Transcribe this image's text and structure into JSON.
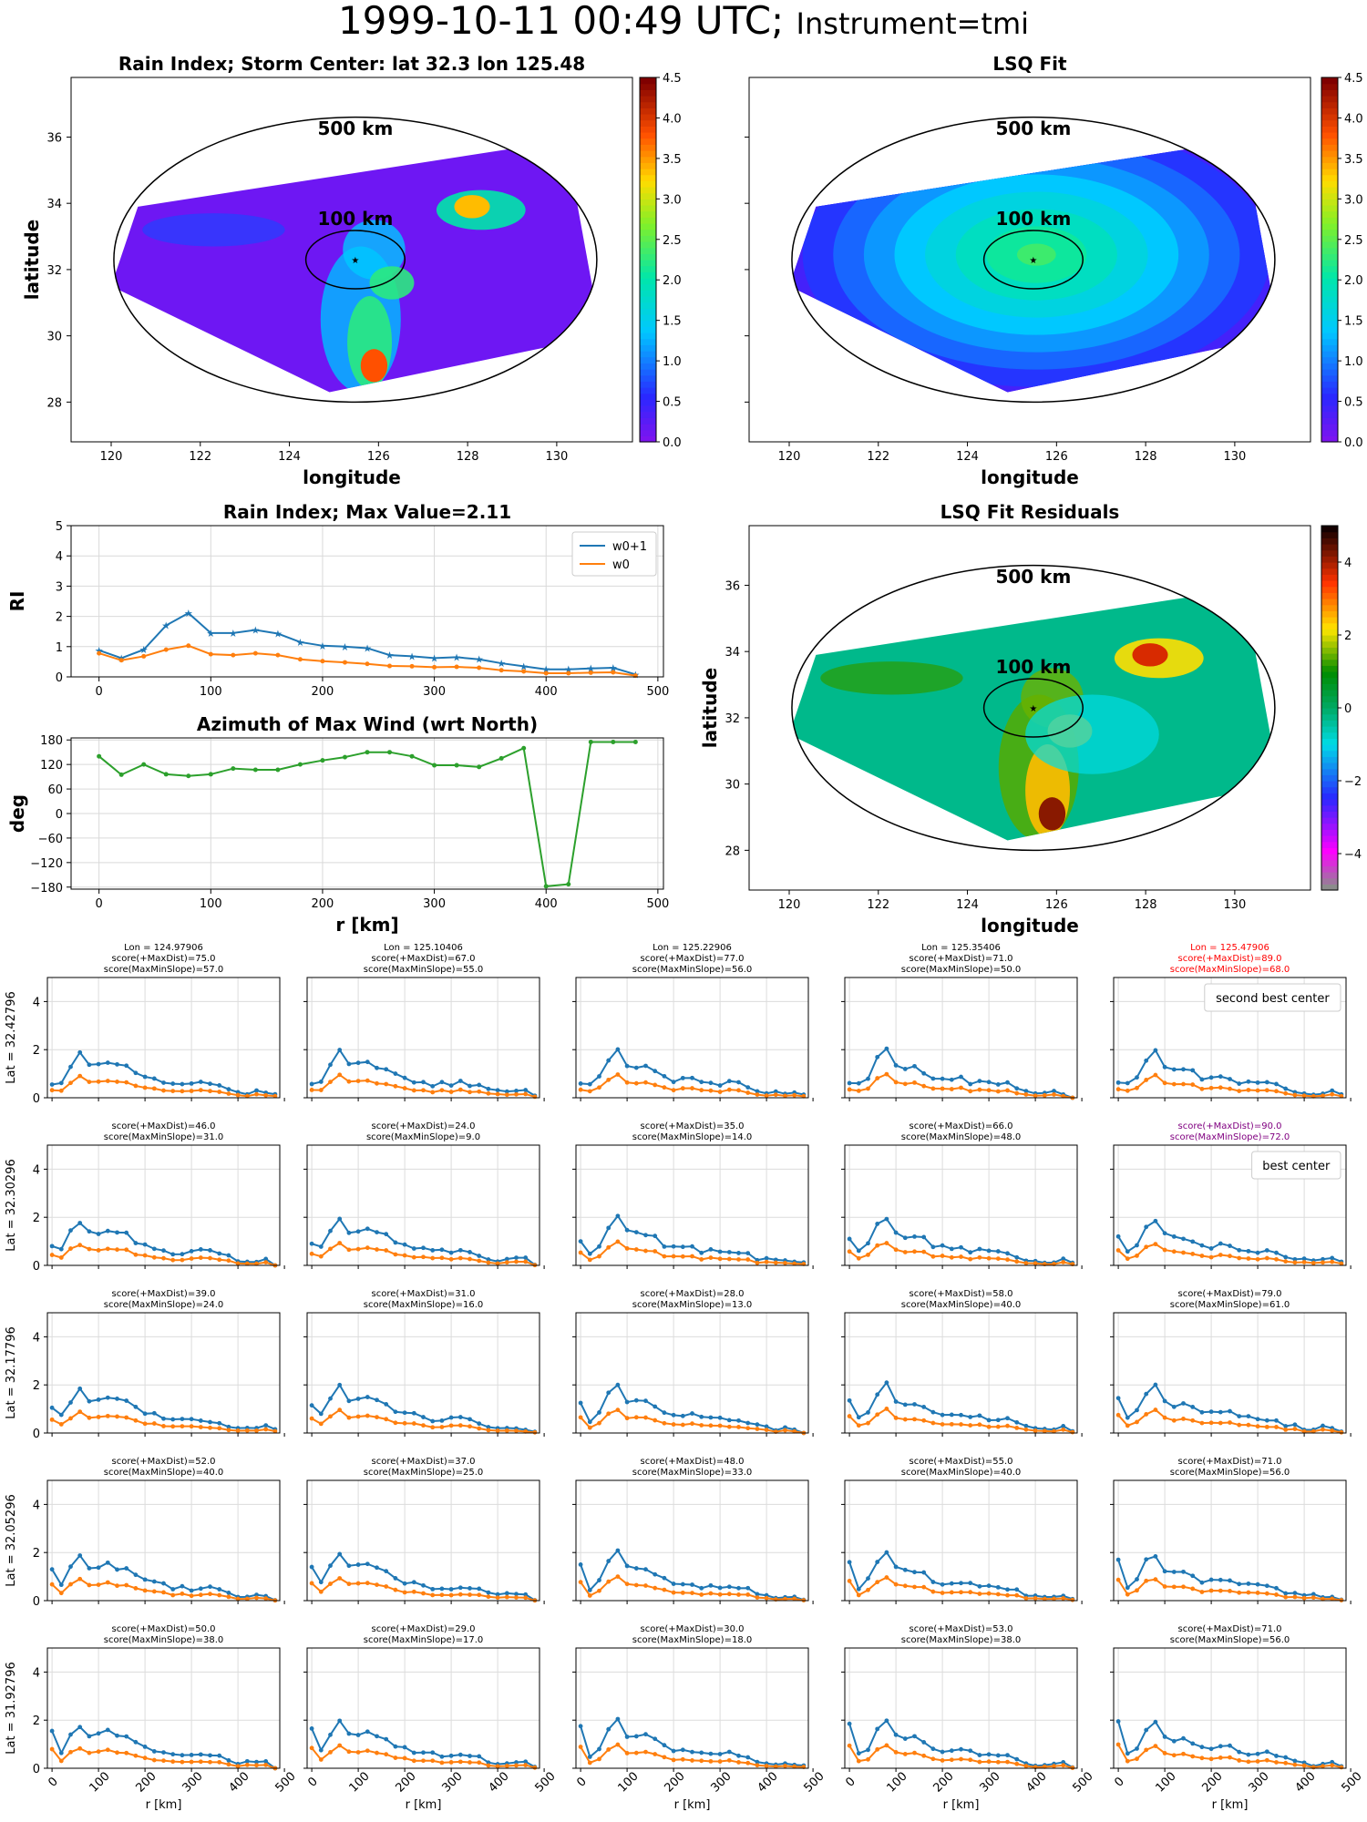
{
  "header": {
    "datetime": "1999-10-11 00:49 UTC;",
    "instrument": "Instrument=tmi"
  },
  "maps": {
    "rain": {
      "title": "Rain Index; Storm Center: lat 32.3 lon 125.48",
      "xlabel": "longitude",
      "ylabel": "latitude",
      "xticks": [
        "120",
        "122",
        "124",
        "126",
        "128",
        "130"
      ],
      "yticks": [
        "28",
        "30",
        "32",
        "34",
        "36"
      ],
      "ring_outer": "500 km",
      "ring_inner": "100 km",
      "cbar_ticks": [
        "0.0",
        "0.5",
        "1.0",
        "1.5",
        "2.0",
        "2.5",
        "3.0",
        "3.5",
        "4.0",
        "4.5"
      ],
      "center": [
        125.48,
        32.3
      ]
    },
    "fit": {
      "title": "LSQ Fit",
      "xlabel": "longitude",
      "ylabel": "",
      "xticks": [
        "120",
        "122",
        "124",
        "126",
        "128",
        "130"
      ],
      "yticks": [],
      "ring_outer": "500 km",
      "ring_inner": "100 km",
      "cbar_ticks": [
        "0.0",
        "0.5",
        "1.0",
        "1.5",
        "2.0",
        "2.5",
        "3.0",
        "3.5",
        "4.0",
        "4.5"
      ]
    },
    "resid": {
      "title": "LSQ Fit Residuals",
      "xlabel": "longitude",
      "ylabel": "latitude",
      "xticks": [
        "120",
        "122",
        "124",
        "126",
        "128",
        "130"
      ],
      "yticks": [
        "28",
        "30",
        "32",
        "34",
        "36"
      ],
      "ring_outer": "500 km",
      "ring_inner": "100 km",
      "cbar_ticks": [
        "−4",
        "−2",
        "0",
        "2",
        "4"
      ]
    }
  },
  "chart_data": [
    {
      "type": "line",
      "title": "Rain Index; Max Value=2.11",
      "xlabel": "",
      "ylabel": "RI",
      "xlim": [
        -25,
        505
      ],
      "ylim": [
        0,
        5
      ],
      "xticks": [
        "0",
        "100",
        "200",
        "300",
        "400",
        "500"
      ],
      "yticks": [
        "0",
        "1",
        "2",
        "3",
        "4",
        "5"
      ],
      "legend": [
        "w0+1",
        "w0"
      ],
      "legend_position": "upper right",
      "grid": true,
      "x": [
        0,
        20,
        40,
        60,
        80,
        100,
        120,
        140,
        160,
        180,
        200,
        220,
        240,
        260,
        280,
        300,
        320,
        340,
        360,
        380,
        400,
        420,
        440,
        460,
        480
      ],
      "series": [
        {
          "name": "w0+1",
          "color": "#1f77b4",
          "values": [
            0.88,
            0.62,
            0.9,
            1.7,
            2.11,
            1.45,
            1.45,
            1.55,
            1.43,
            1.15,
            1.03,
            1.0,
            0.95,
            0.72,
            0.68,
            0.62,
            0.65,
            0.58,
            0.45,
            0.35,
            0.25,
            0.25,
            0.28,
            0.3,
            0.08
          ]
        },
        {
          "name": "w0",
          "color": "#ff7f0e",
          "values": [
            0.78,
            0.55,
            0.68,
            0.9,
            1.03,
            0.75,
            0.72,
            0.78,
            0.72,
            0.58,
            0.52,
            0.48,
            0.43,
            0.36,
            0.35,
            0.32,
            0.33,
            0.3,
            0.22,
            0.18,
            0.12,
            0.12,
            0.14,
            0.15,
            0.04
          ]
        }
      ]
    },
    {
      "type": "line",
      "title": "Azimuth of Max Wind (wrt North)",
      "xlabel": "r [km]",
      "ylabel": "deg",
      "xlim": [
        -25,
        505
      ],
      "ylim": [
        -185,
        185
      ],
      "xticks": [
        "0",
        "100",
        "200",
        "300",
        "400",
        "500"
      ],
      "yticks": [
        "−180",
        "−120",
        "−60",
        "0",
        "60",
        "120",
        "180"
      ],
      "grid": true,
      "x": [
        0,
        20,
        40,
        60,
        80,
        100,
        120,
        140,
        160,
        180,
        200,
        220,
        240,
        260,
        280,
        300,
        320,
        340,
        360,
        380,
        400,
        420,
        440,
        460,
        480
      ],
      "series": [
        {
          "color": "#2ca02c",
          "values": [
            140,
            95,
            120,
            96,
            92,
            96,
            110,
            107,
            107,
            120,
            130,
            138,
            150,
            150,
            140,
            118,
            118,
            114,
            135,
            160,
            -178,
            -173,
            175,
            175,
            175
          ]
        }
      ]
    }
  ],
  "grid": {
    "xlabel": "r [km]",
    "yticks": [
      "0",
      "2",
      "4"
    ],
    "xticks": [
      "0",
      "100",
      "200",
      "300",
      "400",
      "500"
    ],
    "rows": [
      {
        "label": "Lat = 32.42796",
        "cells": [
          {
            "lines": [
              "Lon = 124.97906",
              "score(+MaxDist)=75.0",
              "score(MaxMinSlope)=57.0"
            ],
            "color": "#000000"
          },
          {
            "lines": [
              "Lon = 125.10406",
              "score(+MaxDist)=67.0",
              "score(MaxMinSlope)=55.0"
            ],
            "color": "#000000"
          },
          {
            "lines": [
              "Lon = 125.22906",
              "score(+MaxDist)=77.0",
              "score(MaxMinSlope)=56.0"
            ],
            "color": "#000000"
          },
          {
            "lines": [
              "Lon = 125.35406",
              "score(+MaxDist)=71.0",
              "score(MaxMinSlope)=50.0"
            ],
            "color": "#000000"
          },
          {
            "lines": [
              "Lon = 125.47906",
              "score(+MaxDist)=89.0",
              "score(MaxMinSlope)=68.0"
            ],
            "color": "#ff0000",
            "note": "second best center"
          }
        ]
      },
      {
        "label": "Lat = 32.30296",
        "cells": [
          {
            "lines": [
              "score(+MaxDist)=46.0",
              "score(MaxMinSlope)=31.0"
            ],
            "color": "#000000"
          },
          {
            "lines": [
              "score(+MaxDist)=24.0",
              "score(MaxMinSlope)=9.0"
            ],
            "color": "#000000"
          },
          {
            "lines": [
              "score(+MaxDist)=35.0",
              "score(MaxMinSlope)=14.0"
            ],
            "color": "#000000"
          },
          {
            "lines": [
              "score(+MaxDist)=66.0",
              "score(MaxMinSlope)=48.0"
            ],
            "color": "#000000"
          },
          {
            "lines": [
              "score(+MaxDist)=90.0",
              "score(MaxMinSlope)=72.0"
            ],
            "color": "#800080",
            "note": "best center"
          }
        ]
      },
      {
        "label": "Lat = 32.17796",
        "cells": [
          {
            "lines": [
              "score(+MaxDist)=39.0",
              "score(MaxMinSlope)=24.0"
            ],
            "color": "#000000"
          },
          {
            "lines": [
              "score(+MaxDist)=31.0",
              "score(MaxMinSlope)=16.0"
            ],
            "color": "#000000"
          },
          {
            "lines": [
              "score(+MaxDist)=28.0",
              "score(MaxMinSlope)=13.0"
            ],
            "color": "#000000"
          },
          {
            "lines": [
              "score(+MaxDist)=58.0",
              "score(MaxMinSlope)=40.0"
            ],
            "color": "#000000"
          },
          {
            "lines": [
              "score(+MaxDist)=79.0",
              "score(MaxMinSlope)=61.0"
            ],
            "color": "#000000"
          }
        ]
      },
      {
        "label": "Lat = 32.05296",
        "cells": [
          {
            "lines": [
              "score(+MaxDist)=52.0",
              "score(MaxMinSlope)=40.0"
            ],
            "color": "#000000"
          },
          {
            "lines": [
              "score(+MaxDist)=37.0",
              "score(MaxMinSlope)=25.0"
            ],
            "color": "#000000"
          },
          {
            "lines": [
              "score(+MaxDist)=48.0",
              "score(MaxMinSlope)=33.0"
            ],
            "color": "#000000"
          },
          {
            "lines": [
              "score(+MaxDist)=55.0",
              "score(MaxMinSlope)=40.0"
            ],
            "color": "#000000"
          },
          {
            "lines": [
              "score(+MaxDist)=71.0",
              "score(MaxMinSlope)=56.0"
            ],
            "color": "#000000"
          }
        ]
      },
      {
        "label": "Lat = 31.92796",
        "cells": [
          {
            "lines": [
              "score(+MaxDist)=50.0",
              "score(MaxMinSlope)=38.0"
            ],
            "color": "#000000"
          },
          {
            "lines": [
              "score(+MaxDist)=29.0",
              "score(MaxMinSlope)=17.0"
            ],
            "color": "#000000"
          },
          {
            "lines": [
              "score(+MaxDist)=30.0",
              "score(MaxMinSlope)=18.0"
            ],
            "color": "#000000"
          },
          {
            "lines": [
              "score(+MaxDist)=53.0",
              "score(MaxMinSlope)=38.0"
            ],
            "color": "#000000"
          },
          {
            "lines": [
              "score(+MaxDist)=71.0",
              "score(MaxMinSlope)=56.0"
            ],
            "color": "#000000"
          }
        ]
      }
    ]
  }
}
